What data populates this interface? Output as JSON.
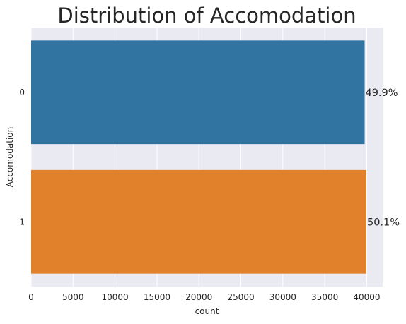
{
  "chart_data": {
    "type": "bar",
    "orientation": "horizontal",
    "title": "Distribution of Accomodation",
    "xlabel": "count",
    "ylabel": "Accomodation",
    "categories": [
      "0",
      "1"
    ],
    "values": [
      39750,
      39960
    ],
    "data_labels": [
      "49.9%",
      "50.1%"
    ],
    "xlim": [
      0,
      41900
    ],
    "xticks": [
      0,
      5000,
      10000,
      15000,
      20000,
      25000,
      30000,
      35000,
      40000
    ],
    "grid": true,
    "colors": [
      "#3274a1",
      "#e1812c"
    ],
    "background": "#eaeaf2"
  }
}
